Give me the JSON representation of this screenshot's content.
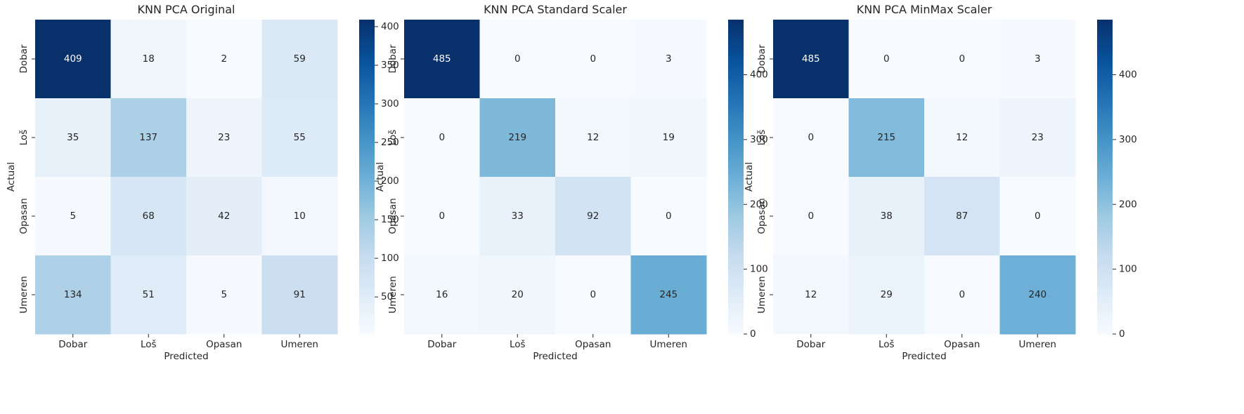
{
  "chart_data": [
    {
      "type": "heatmap",
      "title": "KNN PCA Original",
      "xlabel": "Predicted",
      "ylabel": "Actual",
      "x_categories": [
        "Dobar",
        "Loš",
        "Opasan",
        "Umeren"
      ],
      "y_categories": [
        "Dobar",
        "Loš",
        "Opasan",
        "Umeren"
      ],
      "values": [
        [
          409,
          18,
          2,
          59
        ],
        [
          35,
          137,
          23,
          55
        ],
        [
          5,
          68,
          42,
          10
        ],
        [
          134,
          51,
          5,
          91
        ]
      ],
      "colormap": "Blues",
      "color_range": [
        2,
        409
      ],
      "colorbar_ticks": [
        50,
        100,
        150,
        200,
        250,
        300,
        350,
        400
      ]
    },
    {
      "type": "heatmap",
      "title": "KNN PCA Standard Scaler",
      "xlabel": "Predicted",
      "ylabel": "Actual",
      "x_categories": [
        "Dobar",
        "Loš",
        "Opasan",
        "Umeren"
      ],
      "y_categories": [
        "Dobar",
        "Loš",
        "Opasan",
        "Umeren"
      ],
      "values": [
        [
          485,
          0,
          0,
          3
        ],
        [
          0,
          219,
          12,
          19
        ],
        [
          0,
          33,
          92,
          0
        ],
        [
          16,
          20,
          0,
          245
        ]
      ],
      "colormap": "Blues",
      "color_range": [
        0,
        485
      ],
      "colorbar_ticks": [
        0,
        100,
        200,
        300,
        400
      ]
    },
    {
      "type": "heatmap",
      "title": "KNN PCA MinMax Scaler",
      "xlabel": "Predicted",
      "ylabel": "Actual",
      "x_categories": [
        "Dobar",
        "Loš",
        "Opasan",
        "Umeren"
      ],
      "y_categories": [
        "Dobar",
        "Loš",
        "Opasan",
        "Umeren"
      ],
      "values": [
        [
          485,
          0,
          0,
          3
        ],
        [
          0,
          215,
          12,
          23
        ],
        [
          0,
          38,
          87,
          0
        ],
        [
          12,
          29,
          0,
          240
        ]
      ],
      "colormap": "Blues",
      "color_range": [
        0,
        485
      ],
      "colorbar_ticks": [
        0,
        100,
        200,
        300,
        400
      ]
    }
  ]
}
